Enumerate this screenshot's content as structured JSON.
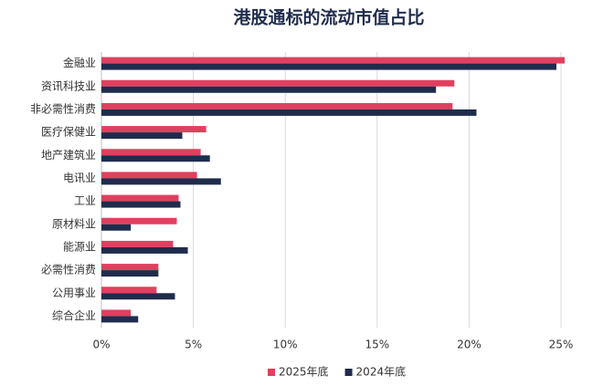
{
  "chart_data": {
    "type": "hbar",
    "title": "港股通标的流动市值占比",
    "categories": [
      "金融业",
      "资讯科技业",
      "非必需性消费",
      "医疗保健业",
      "地产建筑业",
      "电讯业",
      "工业",
      "原材料业",
      "能源业",
      "必需性消费",
      "公用事业",
      "综合企业"
    ],
    "series": [
      {
        "name": "2025年底",
        "color": "#e0405f",
        "values": [
          25.2,
          19.2,
          19.1,
          5.7,
          5.4,
          5.2,
          4.2,
          4.1,
          3.9,
          3.1,
          3.0,
          1.6
        ]
      },
      {
        "name": "2024年底",
        "color": "#1f2c4c",
        "values": [
          24.75,
          18.2,
          20.4,
          4.4,
          5.9,
          6.5,
          4.3,
          1.6,
          4.7,
          3.1,
          4.0,
          2.0
        ]
      }
    ],
    "xlim": [
      0,
      25
    ],
    "xticks": [
      {
        "value": 0,
        "label": "0%"
      },
      {
        "value": 5,
        "label": "5%"
      },
      {
        "value": 10,
        "label": "10%"
      },
      {
        "value": 15,
        "label": "15%"
      },
      {
        "value": 20,
        "label": "20%"
      },
      {
        "value": 25,
        "label": "25%"
      }
    ],
    "grid": true,
    "legend": "bottom"
  }
}
